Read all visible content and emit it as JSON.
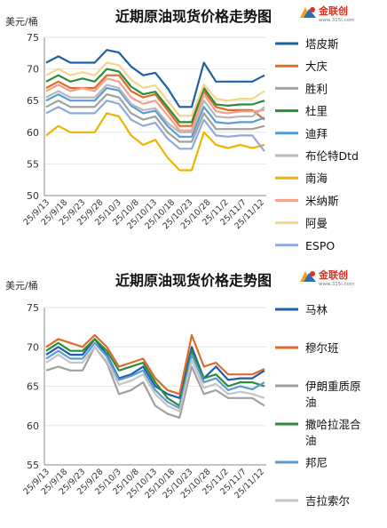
{
  "brand": {
    "name": "金联创",
    "site": "www.315i.com"
  },
  "chart_data": [
    {
      "type": "line",
      "title": "近期原油现货价格走势图",
      "ylabel": "美元/桶",
      "ylim": [
        50,
        75
      ],
      "yticks": [
        50,
        55,
        60,
        65,
        70,
        75
      ],
      "xtick_labels": [
        "25/9/13",
        "25/9/18",
        "25/9/23",
        "25/9/28",
        "25/10/3",
        "25/10/8",
        "25/10/13",
        "25/10/18",
        "25/10/23",
        "25/10/28",
        "25/11/2",
        "25/11/7",
        "25/11/12"
      ],
      "grid": true,
      "legend_position": "right",
      "series": [
        {
          "name": "塔皮斯",
          "color": "#1f5fa8",
          "values": [
            71,
            72,
            71,
            71,
            71,
            73,
            72.6,
            70.4,
            69,
            69.4,
            67,
            64,
            64,
            71,
            68,
            68,
            68,
            68,
            69
          ]
        },
        {
          "name": "大庆",
          "color": "#e06a2a",
          "values": [
            67,
            68,
            67,
            67,
            67,
            69,
            69,
            66.5,
            65.5,
            66,
            63.5,
            61,
            61,
            66.5,
            64,
            63.5,
            63.5,
            63.5,
            62
          ]
        },
        {
          "name": "胜利",
          "color": "#a0a0a0",
          "values": [
            64,
            65,
            64,
            64,
            64,
            66,
            65.5,
            63,
            62,
            62.5,
            60,
            58.5,
            58.5,
            63,
            60.5,
            60.5,
            60.5,
            60.5,
            61
          ]
        },
        {
          "name": "杜里",
          "color": "#2e8b3a",
          "values": [
            68,
            69,
            68,
            68.5,
            68,
            70,
            69.6,
            67.2,
            66,
            66.4,
            64,
            61.6,
            61.6,
            67,
            64.4,
            64.2,
            64.4,
            64.4,
            65
          ]
        },
        {
          "name": "迪拜",
          "color": "#5b9bd5",
          "values": [
            65,
            66,
            65,
            65,
            65,
            67,
            66.6,
            64.2,
            63,
            63.4,
            61,
            59.3,
            59.3,
            64,
            61.6,
            61.4,
            61.6,
            61.6,
            62.3
          ]
        },
        {
          "name": "布伦特Dtd",
          "color": "#b8b8b8",
          "values": [
            65.5,
            66.5,
            65.5,
            65.5,
            65.5,
            67.5,
            67,
            64.5,
            63.5,
            63.8,
            61.5,
            60,
            60,
            65,
            62.5,
            62.3,
            62.5,
            62.5,
            64
          ]
        },
        {
          "name": "南海",
          "color": "#f0b400",
          "values": [
            59.5,
            61,
            60,
            60,
            60,
            63,
            62.5,
            59.5,
            58,
            58.8,
            56,
            54,
            54,
            60,
            58,
            57.5,
            58,
            57.5,
            58
          ]
        },
        {
          "name": "米纳斯",
          "color": "#f4a08a",
          "values": [
            66.5,
            67.5,
            66.5,
            67,
            66.5,
            68.5,
            68,
            65.5,
            64.5,
            65,
            62.7,
            60.3,
            60.3,
            66,
            63.3,
            63,
            63.3,
            63.3,
            63.5
          ]
        },
        {
          "name": "阿曼",
          "color": "#f4d58a",
          "values": [
            69,
            70,
            69,
            69.5,
            69,
            71,
            70.6,
            68.3,
            67,
            67.4,
            65,
            62.6,
            62.6,
            67.5,
            65.3,
            65,
            65.3,
            65.3,
            66.5
          ]
        },
        {
          "name": "ESPO",
          "color": "#8fa8e0",
          "values": [
            63,
            64,
            63,
            63,
            63,
            65,
            64.5,
            62,
            61,
            61.5,
            59,
            57.4,
            57.4,
            62,
            59.5,
            59.3,
            59.5,
            59.5,
            57
          ]
        }
      ]
    },
    {
      "type": "line",
      "title": "近期原油现货价格走势图",
      "ylabel": "美元/桶",
      "ylim": [
        55,
        75
      ],
      "yticks": [
        55,
        60,
        65,
        70,
        75
      ],
      "xtick_labels": [
        "25/9/13",
        "25/9/18",
        "25/9/23",
        "25/9/28",
        "25/10/3",
        "25/10/8",
        "25/10/13",
        "25/10/18",
        "25/10/23",
        "25/10/28",
        "25/11/2",
        "25/11/7",
        "25/11/12"
      ],
      "grid": true,
      "legend_position": "right",
      "series": [
        {
          "name": "马林",
          "color": "#1f5fa8",
          "values": [
            69,
            70,
            69,
            69,
            71,
            69,
            66,
            66.5,
            67.5,
            65,
            64,
            63.5,
            70,
            66,
            67.5,
            65.8,
            66,
            66,
            67
          ]
        },
        {
          "name": "穆尔班",
          "color": "#e06a2a",
          "values": [
            70,
            71,
            70.5,
            70,
            71.5,
            70,
            67.5,
            68,
            68.5,
            66,
            64.5,
            64,
            71.5,
            67.5,
            68,
            66.5,
            66.5,
            66.5,
            67.2
          ]
        },
        {
          "name": "伊朗重质原油",
          "color": "#a0a0a0",
          "values": [
            67,
            67.5,
            67,
            67,
            70,
            68,
            64,
            64.5,
            65.5,
            62.5,
            61.5,
            61,
            67.5,
            64,
            64.5,
            63.5,
            63.5,
            63.5,
            62.5
          ]
        },
        {
          "name": "撒哈拉混合油",
          "color": "#2e8b3a",
          "values": [
            69.5,
            70.5,
            69.5,
            69.5,
            71,
            69.5,
            67,
            67.5,
            68,
            65.5,
            63.5,
            62.5,
            69.5,
            66,
            66.5,
            65,
            65.5,
            65.5,
            65
          ]
        },
        {
          "name": "邦尼",
          "color": "#5b9bd5",
          "values": [
            68.5,
            69.5,
            68.5,
            68.5,
            70.5,
            68.8,
            65.8,
            66.3,
            67,
            64.5,
            63,
            62.2,
            69,
            65.5,
            66,
            64.5,
            65,
            64.6,
            65.5
          ]
        },
        {
          "name": "吉拉索尔",
          "color": "#c4c4c4",
          "values": [
            68,
            69,
            68,
            68,
            70,
            68.2,
            65.2,
            65.7,
            66.5,
            64,
            62.5,
            61.8,
            68.3,
            64.8,
            65.3,
            64,
            64.3,
            64,
            63.5
          ]
        }
      ]
    }
  ]
}
